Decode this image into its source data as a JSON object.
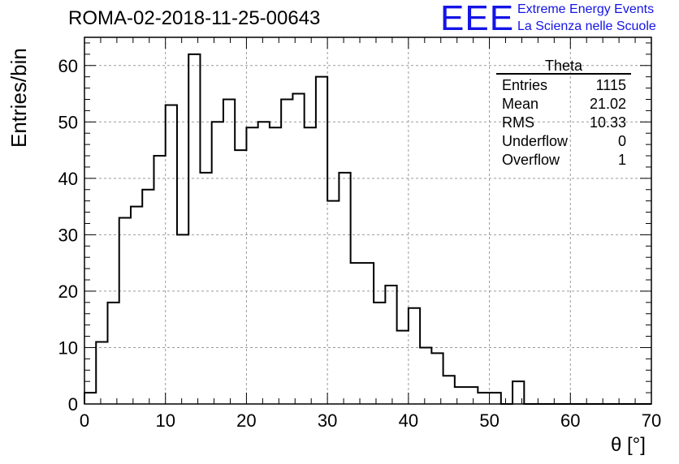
{
  "header": {
    "title": "ROMA-02-2018-11-25-00643",
    "logo_text": "EEE",
    "logo_line1": "Extreme Energy Events",
    "logo_line2": "La Scienza nelle Scuole"
  },
  "stats_box": {
    "name": "Theta",
    "rows": [
      {
        "label": "Entries",
        "value": "1115"
      },
      {
        "label": "Mean",
        "value": "21.02"
      },
      {
        "label": "RMS",
        "value": "10.33"
      },
      {
        "label": "Underflow",
        "value": "0"
      },
      {
        "label": "Overflow",
        "value": "1"
      }
    ]
  },
  "colors": {
    "line": "#000000",
    "grid": "#9a9a9a",
    "logo": "#1414e6"
  },
  "chart_data": {
    "type": "histogram",
    "xlabel": "θ [°]",
    "ylabel": "Entries/bin",
    "xlim": [
      0,
      70
    ],
    "ylim": [
      0,
      65
    ],
    "xticks": [
      0,
      10,
      20,
      30,
      40,
      50,
      60,
      70
    ],
    "yticks": [
      0,
      10,
      20,
      30,
      40,
      50,
      60
    ],
    "grid": true,
    "bin_width": 1.4286,
    "bin_edges_start": 0,
    "values": [
      2,
      11,
      18,
      33,
      35,
      38,
      44,
      53,
      30,
      62,
      41,
      50,
      54,
      45,
      49,
      50,
      49,
      54,
      55,
      49,
      58,
      36,
      41,
      25,
      25,
      18,
      21,
      13,
      17,
      10,
      9,
      5,
      3,
      3,
      2,
      2,
      0,
      4,
      0,
      0,
      0,
      0,
      0,
      0,
      0,
      0,
      0,
      0,
      0
    ]
  }
}
